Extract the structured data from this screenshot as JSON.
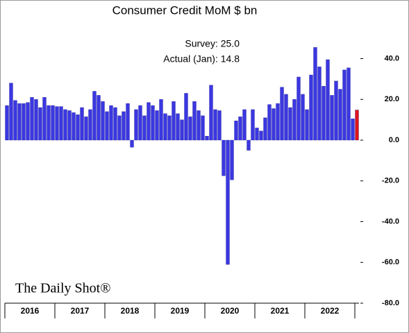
{
  "chart_data": {
    "type": "bar",
    "title": "Consumer Credit MoM $ bn",
    "annotations": [
      "Survey:  25.0",
      "Actual (Jan):  14.8"
    ],
    "source": "The Daily Shot®",
    "year_labels": [
      "2016",
      "2017",
      "2018",
      "2019",
      "2020",
      "2021",
      "2022"
    ],
    "values": [
      17,
      28,
      19.5,
      18,
      18,
      18.5,
      21,
      20,
      16,
      21,
      17,
      17,
      16.5,
      16.5,
      15,
      14.5,
      13.5,
      12.5,
      16,
      11.5,
      15,
      24,
      22,
      19,
      14,
      17,
      16,
      12,
      14,
      18,
      -3.5,
      15,
      17,
      12,
      18.5,
      17,
      14.5,
      20,
      13,
      12,
      19,
      13,
      10,
      23,
      11.5,
      19,
      14.5,
      12,
      2,
      27,
      15,
      14.5,
      -17.5,
      -61,
      -19.5,
      9.5,
      11.5,
      15,
      -5,
      15,
      6,
      4.5,
      11,
      17.5,
      15.5,
      18,
      26,
      22.5,
      16,
      20,
      31,
      22.5,
      15,
      32,
      45.5,
      36,
      26.5,
      39.5,
      22,
      29,
      25,
      34.5,
      35.5,
      10.5,
      14.8
    ],
    "color": "#3b37e0",
    "latest_color": "#e0141b",
    "ylim": [
      -80,
      48
    ],
    "yticks": [
      {
        "value": -80,
        "label": "-80.0"
      },
      {
        "value": -60,
        "label": "-60.0"
      },
      {
        "value": -40,
        "label": "-40.0"
      },
      {
        "value": -20,
        "label": "-20.0"
      },
      {
        "value": 0,
        "label": "0.0"
      },
      {
        "value": 20,
        "label": "20.0"
      },
      {
        "value": 40,
        "label": "40.0"
      }
    ]
  }
}
